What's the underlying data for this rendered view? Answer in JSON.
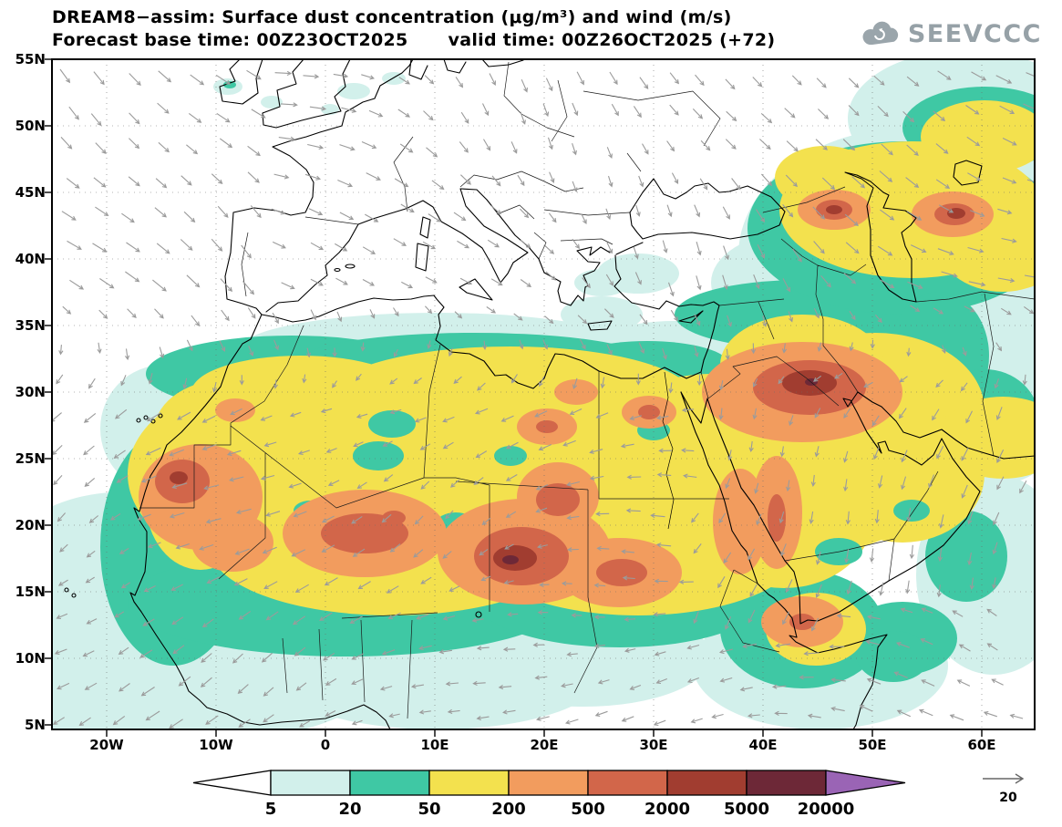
{
  "header": {
    "title_line1": "DREAM8−assim: Surface dust concentration (μg/m³) and wind (m/s)",
    "base_time": "Forecast base time: 00Z23OCT2025",
    "valid_time": "valid time: 00Z26OCT2025 (+72)",
    "logo_text": "SEEVCCC"
  },
  "map": {
    "lat_ticks": [
      "55N",
      "50N",
      "45N",
      "40N",
      "35N",
      "30N",
      "25N",
      "20N",
      "15N",
      "10N",
      "5N"
    ],
    "lon_ticks": [
      "20W",
      "10W",
      "0",
      "10E",
      "20E",
      "30E",
      "40E",
      "50E",
      "60E"
    ]
  },
  "colorbar": {
    "labels": [
      "5",
      "20",
      "50",
      "200",
      "500",
      "2000",
      "5000",
      "20000"
    ],
    "colors": [
      "#ffffff",
      "#d2f0eb",
      "#3fc8a4",
      "#f3e14e",
      "#f29c5e",
      "#d2664a",
      "#a13d30",
      "#6d2837",
      "#9a64b5"
    ]
  },
  "wind_legend": {
    "value": "20"
  },
  "chart_data": {
    "type": "heatmap",
    "title": "DREAM8−assim: Surface dust concentration (μg/m³) and wind (m/s)",
    "subtitle": "Forecast base time: 00Z23OCT2025  valid time: 00Z26OCT2025 (+72)",
    "model": "DREAM8-assim",
    "variable": "Surface dust concentration",
    "units": "μg/m³",
    "wind_units": "m/s",
    "forecast_base_time": "00Z23OCT2025",
    "valid_time": "00Z26OCT2025",
    "forecast_hour": "+72",
    "x": {
      "label": "longitude",
      "ticks": [
        "20W",
        "10W",
        "0",
        "10E",
        "20E",
        "30E",
        "40E",
        "50E",
        "60E"
      ],
      "range": [
        "25W",
        "65E"
      ]
    },
    "y": {
      "label": "latitude",
      "ticks": [
        "55N",
        "50N",
        "45N",
        "40N",
        "35N",
        "30N",
        "25N",
        "20N",
        "15N",
        "10N",
        "5N"
      ],
      "range": [
        "5N",
        "55N"
      ]
    },
    "contour_levels": [
      5,
      20,
      50,
      200,
      500,
      2000,
      5000,
      20000
    ],
    "level_colors": [
      "#ffffff",
      "#d2f0eb",
      "#3fc8a4",
      "#f3e14e",
      "#f29c5e",
      "#d2664a",
      "#a13d30",
      "#6d2837",
      "#9a64b5"
    ],
    "wind_reference_vector": 20,
    "legend_position": "bottom",
    "grid": "dotted 5-degree graticule"
  }
}
